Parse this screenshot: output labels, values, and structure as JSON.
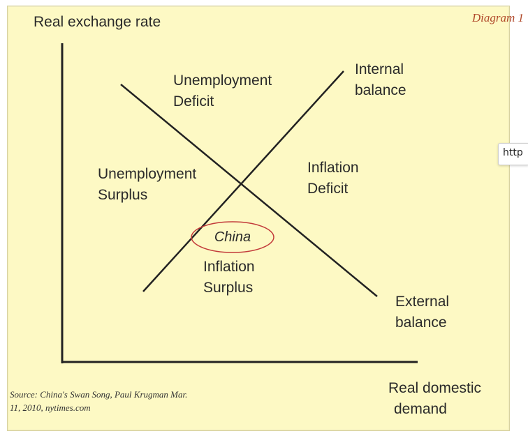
{
  "diagram": {
    "tag": "Diagram 1",
    "y_axis_label": "Real exchange rate",
    "x_axis_label": [
      "Real domestic",
      "demand"
    ],
    "internal_balance": [
      "Internal",
      "balance"
    ],
    "external_balance": [
      "External",
      "balance"
    ],
    "regions": {
      "top": [
        "Unemployment",
        "Deficit"
      ],
      "left": [
        "Unemployment",
        "Surplus"
      ],
      "right": [
        "Inflation",
        "Deficit"
      ],
      "bottom": [
        "Inflation",
        "Surplus"
      ]
    },
    "highlight": "China",
    "highlight_color": "#c23a3a",
    "source": [
      "Source:  China's Swan Song, Paul Krugman Mar.",
      "11, 2010, nytimes.com"
    ]
  },
  "overlay": {
    "url_tab_text": "http"
  }
}
